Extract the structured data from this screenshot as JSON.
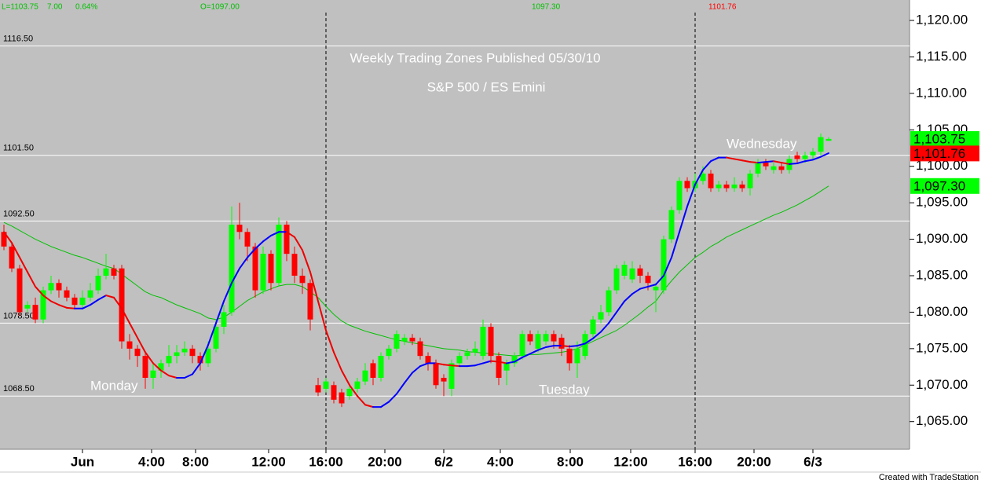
{
  "chart_data": {
    "type": "candlestick",
    "title": "Weekly Trading Zones Published 05/30/10",
    "subtitle": "S&P 500 / ES Emini",
    "header": [
      "L=1103.75",
      "7.00",
      "0.64%",
      "O=1097.00"
    ],
    "top_labels": [
      "1097.30",
      "1101.76"
    ],
    "day_labels": [
      "Monday",
      "Tuesday",
      "Wednesday"
    ],
    "footer": "Created with TradeStation",
    "up_color": "#00ff00",
    "down_color": "#ff0000",
    "background": "#c0c0c0",
    "xlim": [
      -0.5,
      115.3
    ],
    "ylim": [
      1061.2,
      1122.8
    ],
    "yticks": [
      {
        "value": 1065,
        "label": "1,065.00"
      },
      {
        "value": 1070,
        "label": "1,070.00"
      },
      {
        "value": 1075,
        "label": "1,075.00"
      },
      {
        "value": 1080,
        "label": "1,080.00"
      },
      {
        "value": 1085,
        "label": "1,085.00"
      },
      {
        "value": 1090,
        "label": "1,090.00"
      },
      {
        "value": 1095,
        "label": "1,095.00"
      },
      {
        "value": 1100,
        "label": "1,100.00"
      },
      {
        "value": 1105,
        "label": "1,105.00"
      },
      {
        "value": 1110,
        "label": "1,110.00"
      },
      {
        "value": 1115,
        "label": "1,115.00"
      },
      {
        "value": 1120,
        "label": "1,120.00"
      }
    ],
    "xticks": [
      {
        "value": 10,
        "label": "Jun"
      },
      {
        "value": 18.8,
        "label": "4:00"
      },
      {
        "value": 24.4,
        "label": "8:00"
      },
      {
        "value": 33.7,
        "label": "12:00"
      },
      {
        "value": 41,
        "label": "16:00"
      },
      {
        "value": 48.5,
        "label": "20:00"
      },
      {
        "value": 56,
        "label": "6/2"
      },
      {
        "value": 63.2,
        "label": "4:00"
      },
      {
        "value": 72.1,
        "label": "8:00"
      },
      {
        "value": 79.8,
        "label": "12:00"
      },
      {
        "value": 88,
        "label": "16:00"
      },
      {
        "value": 95.5,
        "label": "20:00"
      },
      {
        "value": 103,
        "label": "6/3"
      }
    ],
    "session_breaks": [
      41,
      88
    ],
    "zones": [
      {
        "value": 1116.5,
        "label": "1116.50"
      },
      {
        "value": 1101.5,
        "label": "1101.50"
      },
      {
        "value": 1092.5,
        "label": "1092.50"
      },
      {
        "value": 1078.5,
        "label": "1078.50"
      },
      {
        "value": 1068.5,
        "label": "1068.50"
      }
    ],
    "price_boxes": [
      {
        "value": 1103.75,
        "label": "1,103.75",
        "color": "#00ff00"
      },
      {
        "value": 1101.76,
        "label": "1,101.76",
        "color": "#ff0000"
      },
      {
        "value": 1097.3,
        "label": "1,097.30",
        "color": "#00ff00"
      }
    ],
    "open": [
      1091,
      1089,
      1086,
      1080.5,
      1081,
      1079,
      1083,
      1084,
      1083,
      1082,
      1081,
      1082,
      1083,
      1085,
      1086,
      1086,
      1076,
      1075,
      1074,
      1071,
      1072,
      1073,
      1074,
      1074.5,
      1075,
      1074,
      1073,
      1075,
      1078,
      1080,
      1092,
      1091,
      1089,
      1083,
      1088,
      1084,
      1092,
      1088,
      1085,
      1084,
      1070,
      1069.5,
      1070,
      1069,
      1068.5,
      1069.5,
      1070.5,
      1073,
      1071,
      1074,
      1075,
      1076,
      1076.5,
      1076,
      1074,
      1073,
      1071,
      1069.5,
      1073,
      1074,
      1074.5,
      1074,
      1078,
      1074,
      1072,
      1073,
      1074,
      1077,
      1075,
      1076,
      1077,
      1076.5,
      1075,
      1073,
      1074,
      1077,
      1079,
      1080,
      1083,
      1085,
      1084.5,
      1086,
      1085,
      1083,
      1083,
      1090,
      1094,
      1098,
      1097,
      1098,
      1099,
      1097,
      1097.5,
      1097,
      1097.5,
      1097,
      1099,
      1100.5,
      1099.5,
      1100,
      1099.5,
      1101.5,
      1101,
      1101.5,
      1102,
      1103.5
    ],
    "high": [
      1092,
      1089.5,
      1086.5,
      1081.5,
      1082,
      1083.5,
      1085,
      1084.5,
      1083.5,
      1082.5,
      1083,
      1084,
      1086,
      1088,
      1086.5,
      1086.5,
      1077,
      1075.5,
      1074.5,
      1073,
      1073.5,
      1075.5,
      1075.5,
      1076,
      1075.5,
      1074.5,
      1076,
      1079,
      1081,
      1094.5,
      1095,
      1091.5,
      1089.5,
      1089,
      1088.5,
      1093,
      1092.5,
      1089,
      1086,
      1084.5,
      1071,
      1071,
      1070.5,
      1069.5,
      1070,
      1071,
      1073,
      1073.5,
      1074.5,
      1075.5,
      1077.5,
      1077,
      1077,
      1076.5,
      1074.5,
      1073.5,
      1071.5,
      1073.5,
      1074.5,
      1075,
      1076,
      1079,
      1078.5,
      1074.5,
      1073.5,
      1074.5,
      1077.5,
      1077.5,
      1077.5,
      1077.5,
      1077.5,
      1077,
      1075.5,
      1076,
      1077.5,
      1079.5,
      1081,
      1083.5,
      1086.5,
      1087,
      1087,
      1086.5,
      1085.5,
      1084,
      1090.5,
      1094.5,
      1098.5,
      1098.5,
      1099,
      1100,
      1099.5,
      1098,
      1098,
      1098.5,
      1098,
      1099.5,
      1101,
      1101,
      1100.5,
      1100.5,
      1101.5,
      1102,
      1102,
      1102.5,
      1104.5,
      1104
    ],
    "low": [
      1088.5,
      1085.5,
      1079.5,
      1080,
      1078.5,
      1078.5,
      1082.5,
      1082,
      1081.5,
      1080.5,
      1080.5,
      1081.5,
      1082.5,
      1084.5,
      1084.5,
      1075,
      1073.5,
      1072.5,
      1069.5,
      1069.5,
      1071,
      1072.5,
      1073,
      1074,
      1073,
      1072,
      1072.5,
      1074.5,
      1077,
      1079.5,
      1090,
      1087,
      1082,
      1082.5,
      1083,
      1083.5,
      1087,
      1084,
      1082.5,
      1077.5,
      1068.5,
      1069,
      1067.5,
      1067,
      1068,
      1069,
      1070,
      1070,
      1070.5,
      1073.5,
      1074.5,
      1075.5,
      1075.5,
      1073.5,
      1072,
      1069.5,
      1068.5,
      1068.5,
      1072.5,
      1073.5,
      1074,
      1073.5,
      1073,
      1070,
      1070,
      1072.5,
      1073.5,
      1075.5,
      1074.5,
      1075.5,
      1075,
      1074,
      1072,
      1071,
      1073.5,
      1076.5,
      1078.5,
      1079.5,
      1082.5,
      1084.5,
      1084,
      1084,
      1083,
      1080,
      1082.5,
      1089.5,
      1093.5,
      1096.5,
      1096.5,
      1097.5,
      1096.5,
      1096.5,
      1096.5,
      1096.5,
      1096.5,
      1096,
      1098.5,
      1099.5,
      1099,
      1099,
      1099,
      1100.5,
      1100.5,
      1101,
      1101.5,
      1103.5
    ],
    "close": [
      1089,
      1086,
      1080,
      1081,
      1079,
      1083,
      1084,
      1083,
      1082,
      1081,
      1082,
      1083,
      1085,
      1086,
      1085,
      1076,
      1075,
      1074,
      1071,
      1072,
      1073,
      1074,
      1074.5,
      1075,
      1074,
      1073,
      1075,
      1078,
      1080,
      1092,
      1091,
      1089,
      1083,
      1088,
      1084,
      1092,
      1088,
      1085,
      1084,
      1079,
      1069,
      1070.5,
      1068,
      1067.5,
      1069.5,
      1070.5,
      1072,
      1071,
      1074,
      1075,
      1077,
      1076.5,
      1076,
      1074,
      1073,
      1070,
      1070.5,
      1073,
      1074,
      1074.5,
      1075,
      1078,
      1074,
      1071,
      1073,
      1074,
      1077,
      1076,
      1077,
      1077,
      1076,
      1075,
      1073,
      1075,
      1077,
      1079,
      1080,
      1083,
      1086,
      1086.5,
      1086,
      1085,
      1084,
      1083.5,
      1090,
      1094,
      1098,
      1097,
      1098,
      1099,
      1097,
      1097.5,
      1097,
      1097.5,
      1097,
      1099,
      1100.5,
      1100,
      1100,
      1099.5,
      1101,
      1101,
      1101.5,
      1102,
      1104,
      1103.75
    ],
    "fast_ma": {
      "up_color": "#0000ff",
      "down_color": "#ee0000",
      "values": [
        1091,
        1089.5,
        1087.5,
        1085.5,
        1083.5,
        1082.3,
        1081.5,
        1081,
        1080.6,
        1080.5,
        1080.5,
        1081,
        1081.7,
        1082.3,
        1082,
        1080.5,
        1078.5,
        1076.5,
        1074.5,
        1073,
        1072,
        1071.3,
        1071,
        1071,
        1071.5,
        1073,
        1075.5,
        1078.5,
        1081.5,
        1084,
        1086,
        1087.5,
        1088.7,
        1089.7,
        1090.5,
        1091,
        1091,
        1090.3,
        1088.5,
        1085.5,
        1081.5,
        1077.5,
        1074.5,
        1072,
        1070,
        1068.5,
        1067.3,
        1067,
        1067,
        1067.7,
        1068.8,
        1070.3,
        1071.7,
        1072.6,
        1073,
        1073,
        1072.8,
        1072.7,
        1072.6,
        1072.6,
        1072.7,
        1073,
        1073.3,
        1073.2,
        1073,
        1073.2,
        1073.8,
        1074.3,
        1074.8,
        1075.2,
        1075.4,
        1075.4,
        1075.3,
        1075.4,
        1075.7,
        1076.4,
        1077.3,
        1078.5,
        1080,
        1081.5,
        1082.5,
        1083.2,
        1083.5,
        1083.8,
        1085,
        1087.5,
        1091,
        1094.5,
        1097.5,
        1099.5,
        1100.7,
        1101.2,
        1101.2,
        1101,
        1100.8,
        1100.6,
        1100.5,
        1100.6,
        1100.7,
        1100.5,
        1100.3,
        1100.4,
        1100.7,
        1100.9,
        1101.3,
        1101.8
      ]
    },
    "slow_ma": {
      "color": "#00c000",
      "values": [
        1092.3,
        1091.8,
        1091.2,
        1090.6,
        1090,
        1089.5,
        1089,
        1088.6,
        1088.2,
        1087.8,
        1087.5,
        1087.1,
        1086.7,
        1086.3,
        1086,
        1085.2,
        1084.4,
        1083.6,
        1082.8,
        1082.3,
        1082,
        1081.5,
        1081,
        1080.6,
        1080.2,
        1079.8,
        1079.2,
        1079,
        1079.3,
        1080,
        1080.8,
        1081.6,
        1082.2,
        1082.8,
        1083.2,
        1083.6,
        1083.8,
        1083.8,
        1083.5,
        1082.8,
        1082,
        1080.8,
        1079.7,
        1078.8,
        1078.2,
        1077.8,
        1077.4,
        1077.1,
        1076.8,
        1076.5,
        1076.2,
        1076,
        1075.8,
        1075.6,
        1075.4,
        1075.2,
        1075,
        1074.9,
        1074.8,
        1074.6,
        1074.5,
        1074.4,
        1074.3,
        1074.2,
        1074.1,
        1074,
        1074.1,
        1074.2,
        1074.2,
        1074.3,
        1074.4,
        1074.5,
        1074.7,
        1075,
        1075.5,
        1076,
        1076.5,
        1077,
        1077.5,
        1078.2,
        1079,
        1079.8,
        1080.7,
        1081.5,
        1083,
        1084.3,
        1085.5,
        1086.5,
        1087.5,
        1088.2,
        1089,
        1089.6,
        1090.3,
        1090.8,
        1091.3,
        1091.8,
        1092.3,
        1092.8,
        1093.3,
        1093.7,
        1094.2,
        1094.7,
        1095.3,
        1095.9,
        1096.6,
        1097.3
      ]
    }
  }
}
